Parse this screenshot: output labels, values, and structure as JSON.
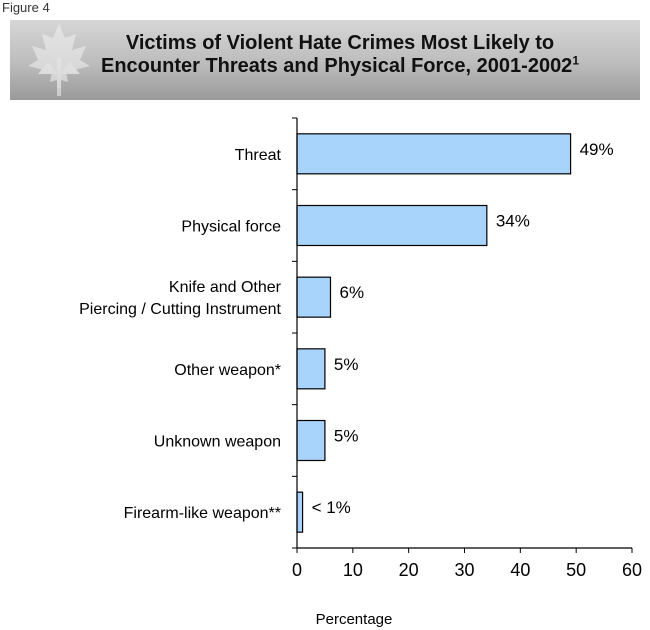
{
  "figure_label": "Figure 4",
  "colors": {
    "bar_fill": "#a8d3fb",
    "bar_stroke": "#000000",
    "banner_bg": "#bcbcbc"
  },
  "banner": {
    "icon": "maple-leaf-scales-icon"
  },
  "chart_data": {
    "type": "bar",
    "orientation": "horizontal",
    "title_line1": "Victims of Violent Hate Crimes Most Likely to",
    "title_line2": "Encounter Threats and Physical Force, 2001-2002",
    "title_superscript": "1",
    "categories": [
      "Threat",
      "Physical force",
      "Knife and Other|Piercing  / Cutting Instrument",
      "Other weapon*",
      "Unknown weapon",
      "Firearm-like weapon**"
    ],
    "values": [
      49,
      34,
      6,
      5,
      5,
      1
    ],
    "data_labels": [
      "49%",
      "34%",
      "6%",
      "5%",
      "5%",
      "< 1%"
    ],
    "xlabel": "Percentage",
    "xlim": [
      0,
      60
    ],
    "xticks": [
      0,
      10,
      20,
      30,
      40,
      50,
      60
    ],
    "grid": false,
    "legend": "none"
  }
}
